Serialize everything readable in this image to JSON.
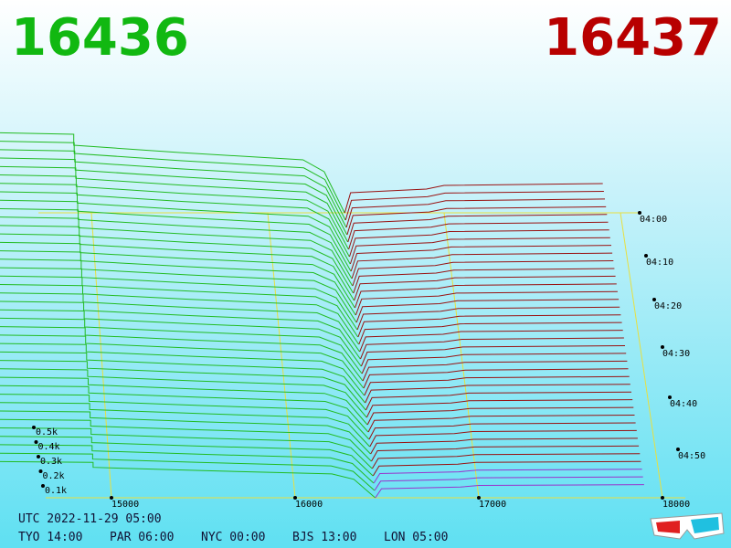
{
  "header": {
    "bid": "16436",
    "ask": "16437"
  },
  "axes": {
    "price_ticks": [
      "15000",
      "16000",
      "17000",
      "18000"
    ],
    "time_ticks": [
      "04:00",
      "04:10",
      "04:20",
      "04:30",
      "04:40",
      "04:50"
    ],
    "depth_ticks": [
      "0.5k",
      "0.4k",
      "0.3k",
      "0.2k",
      "0.1k"
    ]
  },
  "footer": {
    "utc": "UTC 2022-11-29 05:00",
    "clocks": [
      "TYO 14:00",
      "PAR 06:00",
      "NYC 00:00",
      "BJS 13:00",
      "LON 05:00"
    ]
  }
}
